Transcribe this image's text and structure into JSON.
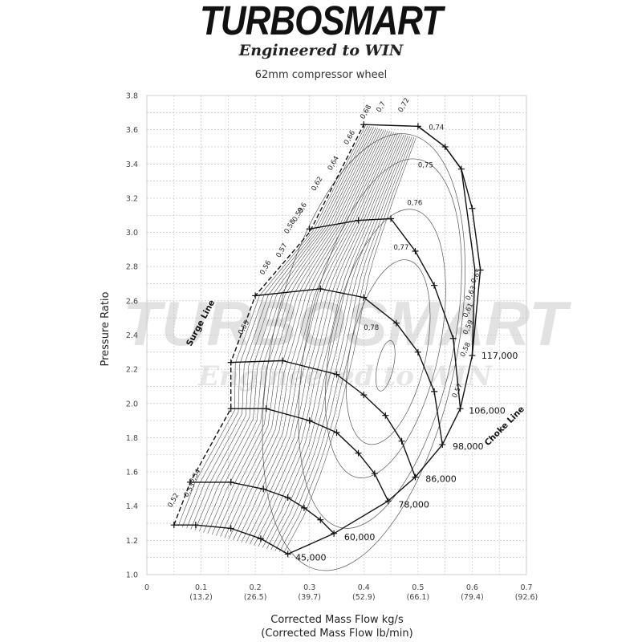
{
  "brand": {
    "name": "TURBOSMART",
    "tagline": "Engineered to WIN"
  },
  "chart_data": {
    "type": "line",
    "title": "62mm compressor wheel",
    "xlabel": "Corrected Mass Flow kg/s",
    "xlabel2": "(Corrected Mass Flow lb/min)",
    "ylabel": "Pressure Ratio",
    "xlim": [
      0,
      0.7
    ],
    "ylim": [
      1.0,
      3.8
    ],
    "grid": true,
    "x_ticks": [
      {
        "value": 0,
        "label": "0",
        "label2": ""
      },
      {
        "value": 0.1,
        "label": "0.1",
        "label2": "(13.2)"
      },
      {
        "value": 0.2,
        "label": "0.2",
        "label2": "(26.5)"
      },
      {
        "value": 0.3,
        "label": "0.3",
        "label2": "(39.7)"
      },
      {
        "value": 0.4,
        "label": "0.4",
        "label2": "(52.9)"
      },
      {
        "value": 0.5,
        "label": "0.5",
        "label2": "(66.1)"
      },
      {
        "value": 0.6,
        "label": "0.6",
        "label2": "(79.4)"
      },
      {
        "value": 0.7,
        "label": "0.7",
        "label2": "(92.6)"
      }
    ],
    "y_ticks": [
      "1.0",
      "1.2",
      "1.4",
      "1.6",
      "1.8",
      "2.0",
      "2.2",
      "2.4",
      "2.6",
      "2.8",
      "3.0",
      "3.2",
      "3.4",
      "3.6",
      "3.8"
    ],
    "surge_line": {
      "label": "Surge Line",
      "points": [
        [
          0.05,
          1.29
        ],
        [
          0.08,
          1.54
        ],
        [
          0.155,
          1.97
        ],
        [
          0.155,
          2.24
        ],
        [
          0.2,
          2.63
        ],
        [
          0.3,
          3.0
        ],
        [
          0.4,
          3.63
        ]
      ]
    },
    "choke_line": {
      "label": "Choke Line",
      "points": [
        [
          0.26,
          1.12
        ],
        [
          0.345,
          1.24
        ],
        [
          0.445,
          1.43
        ],
        [
          0.495,
          1.57
        ],
        [
          0.545,
          1.76
        ],
        [
          0.578,
          1.97
        ],
        [
          0.6,
          2.28
        ],
        [
          0.605,
          2.78
        ],
        [
          0.58,
          3.37
        ],
        [
          0.55,
          3.5
        ],
        [
          0.5,
          3.62
        ]
      ]
    },
    "speed_lines": [
      {
        "name": "45,000",
        "points": [
          [
            0.05,
            1.29
          ],
          [
            0.09,
            1.29
          ],
          [
            0.155,
            1.27
          ],
          [
            0.21,
            1.21
          ],
          [
            0.26,
            1.12
          ]
        ]
      },
      {
        "name": "60,000",
        "points": [
          [
            0.08,
            1.54
          ],
          [
            0.155,
            1.54
          ],
          [
            0.215,
            1.5
          ],
          [
            0.26,
            1.45
          ],
          [
            0.29,
            1.39
          ],
          [
            0.32,
            1.32
          ],
          [
            0.345,
            1.24
          ]
        ]
      },
      {
        "name": "78,000",
        "points": [
          [
            0.155,
            1.97
          ],
          [
            0.22,
            1.97
          ],
          [
            0.3,
            1.9
          ],
          [
            0.35,
            1.83
          ],
          [
            0.39,
            1.71
          ],
          [
            0.42,
            1.59
          ],
          [
            0.445,
            1.43
          ]
        ]
      },
      {
        "name": "86,000",
        "points": [
          [
            0.155,
            2.24
          ],
          [
            0.25,
            2.25
          ],
          [
            0.35,
            2.17
          ],
          [
            0.4,
            2.05
          ],
          [
            0.44,
            1.93
          ],
          [
            0.47,
            1.78
          ],
          [
            0.495,
            1.57
          ]
        ]
      },
      {
        "name": "98,000",
        "points": [
          [
            0.2,
            2.63
          ],
          [
            0.32,
            2.67
          ],
          [
            0.4,
            2.62
          ],
          [
            0.46,
            2.47
          ],
          [
            0.5,
            2.3
          ],
          [
            0.53,
            2.07
          ],
          [
            0.545,
            1.76
          ]
        ]
      },
      {
        "name": "106,000",
        "points": [
          [
            0.3,
            3.02
          ],
          [
            0.39,
            3.07
          ],
          [
            0.45,
            3.08
          ],
          [
            0.495,
            2.89
          ],
          [
            0.53,
            2.69
          ],
          [
            0.565,
            2.38
          ],
          [
            0.578,
            1.97
          ]
        ]
      },
      {
        "name": "117,000",
        "points": [
          [
            0.4,
            3.63
          ],
          [
            0.5,
            3.62
          ],
          [
            0.55,
            3.5
          ],
          [
            0.58,
            3.37
          ],
          [
            0.6,
            3.14
          ],
          [
            0.615,
            2.78
          ],
          [
            0.6,
            2.28
          ]
        ]
      }
    ],
    "efficiency_islands": [
      {
        "label": "0.78",
        "center": [
          0.44,
          2.22
        ],
        "rx": 0.015,
        "ry": 0.15
      },
      {
        "label": "0.77",
        "center": [
          0.445,
          2.3
        ],
        "rx": 0.07,
        "ry": 0.55
      },
      {
        "label": "0.76",
        "center": [
          0.44,
          2.35
        ],
        "rx": 0.1,
        "ry": 0.8
      },
      {
        "label": "0.75",
        "center": [
          0.43,
          2.35
        ],
        "rx": 0.135,
        "ry": 1.1
      },
      {
        "label": "0.74",
        "center": [
          0.4,
          2.3
        ],
        "rx": 0.17,
        "ry": 1.3
      }
    ],
    "efficiency_labels": {
      "surge_side": [
        "0,52",
        "0,53",
        "0,54",
        "0,55",
        "0,56",
        "0,57",
        "0,58",
        "0,59",
        "0,6",
        "0,62",
        "0,64",
        "0,66",
        "0,68",
        "0,7",
        "0,72"
      ],
      "interior": [
        "0,74",
        "0,75",
        "0,76",
        "0,77",
        "0,78"
      ],
      "choke_side": [
        "0,65",
        "0,63",
        "0,61",
        "0,59",
        "0,58",
        "0,57"
      ]
    }
  }
}
